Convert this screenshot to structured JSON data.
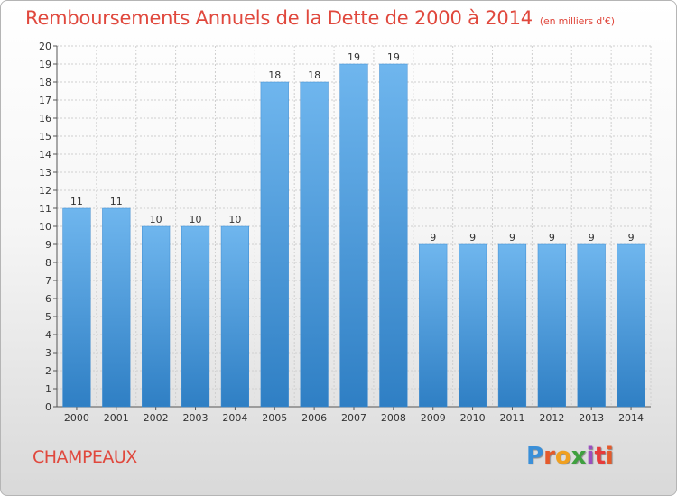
{
  "title": "Remboursements Annuels de la Dette de 2000 à 2014",
  "unit": "(en milliers d'€)",
  "commune": "CHAMPEAUX",
  "logo": {
    "name": "Proxiti",
    "colors": [
      "#3a8fd8",
      "#e55a2b",
      "#f0a020",
      "#3fa03f",
      "#9a4fc0",
      "#e63b3b"
    ]
  },
  "colors": {
    "bar": "#4d9fde",
    "bar_top": "#6fb6ee",
    "bar_bottom": "#2f7fc4",
    "title": "#e0483d",
    "grid": "#cfcfcf"
  },
  "chart_data": {
    "type": "bar",
    "categories": [
      "2000",
      "2001",
      "2002",
      "2003",
      "2004",
      "2005",
      "2006",
      "2007",
      "2008",
      "2009",
      "2010",
      "2011",
      "2012",
      "2013",
      "2014"
    ],
    "values": [
      11,
      11,
      10,
      10,
      10,
      18,
      18,
      19,
      19,
      9,
      9,
      9,
      9,
      9,
      9
    ],
    "title": "Remboursements Annuels de la Dette de 2000 à 2014",
    "xlabel": "",
    "ylabel": "",
    "ylim": [
      0,
      20
    ],
    "yticks": [
      0,
      1,
      2,
      3,
      4,
      5,
      6,
      7,
      8,
      9,
      10,
      11,
      12,
      13,
      14,
      15,
      16,
      17,
      18,
      19,
      20
    ],
    "grid": true,
    "data_labels": true
  }
}
